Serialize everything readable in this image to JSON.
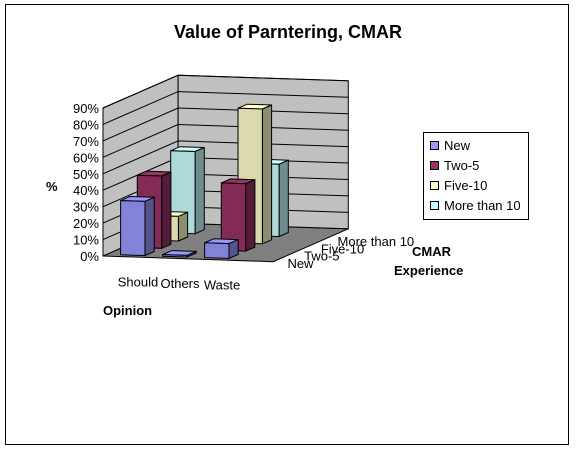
{
  "chart_data": {
    "type": "bar",
    "title": "Value of Parntering, CMAR",
    "ylabel": "%",
    "xlabel": "Opinion",
    "zlabel": "CMAR Experience",
    "zlabel_lines": [
      "CMAR",
      "Experience"
    ],
    "yticks": [
      "0%",
      "10%",
      "20%",
      "30%",
      "40%",
      "50%",
      "60%",
      "70%",
      "80%",
      "90%"
    ],
    "ylim": [
      0,
      90
    ],
    "categories": [
      "Should",
      "Others",
      "Waste"
    ],
    "series": [
      {
        "name": "New",
        "values": [
          33,
          1,
          9
        ],
        "color": "#9999ff"
      },
      {
        "name": "Two-5",
        "values": [
          44,
          0,
          41
        ],
        "color": "#993366"
      },
      {
        "name": "Five-10",
        "values": [
          15,
          0,
          82
        ],
        "color": "#ffffcc"
      },
      {
        "name": "More than 10",
        "values": [
          50,
          0,
          44
        ],
        "color": "#ccffff"
      }
    ],
    "legend_position": "right",
    "grid": true
  }
}
